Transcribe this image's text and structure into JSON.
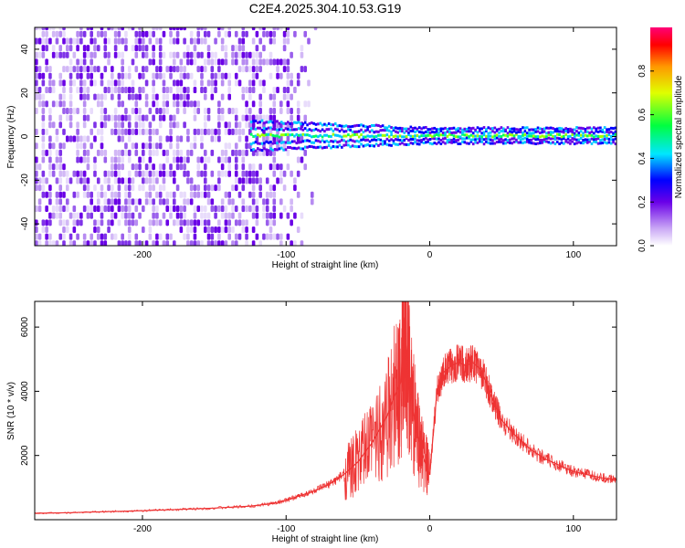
{
  "title": "C2E4.2025.304.10.53.G19",
  "chart_data": [
    {
      "type": "heatmap",
      "xlabel": "Height of straight line (km)",
      "ylabel": "Frequency (Hz)",
      "xlim": [
        -275,
        130
      ],
      "ylim": [
        -50,
        50
      ],
      "x_ticks": [
        -200,
        -100,
        0,
        100
      ],
      "y_ticks": [
        -40,
        -20,
        0,
        20,
        40
      ],
      "colorbar": {
        "label": "Normalized spectral amplitude",
        "range": [
          0.0,
          1.0
        ],
        "ticks": [
          0.0,
          0.2,
          0.4,
          0.6,
          0.8
        ]
      },
      "ridge_band": {
        "center_hz": 0,
        "half_width_hz": 4,
        "visible_from_km": -125,
        "visible_to_km": 130
      },
      "noise_region_km": [
        -275,
        -75
      ]
    },
    {
      "type": "line",
      "xlabel": "Height of straight line (km)",
      "ylabel": "SNR (10 * v/v)",
      "xlim": [
        -275,
        130
      ],
      "ylim": [
        0,
        6800
      ],
      "x_ticks": [
        -200,
        -100,
        0,
        100
      ],
      "y_ticks": [
        2000,
        4000,
        6000
      ],
      "color": "#ee3333",
      "series": [
        {
          "x": [
            -275,
            -250,
            -225,
            -200,
            -175,
            -150,
            -125,
            -110,
            -100,
            -90,
            -80,
            -70,
            -60,
            -50,
            -40,
            -30,
            -25,
            -20,
            -18,
            -15,
            -10,
            -5,
            0,
            5,
            10,
            15,
            20,
            25,
            30,
            35,
            40,
            45,
            50,
            60,
            70,
            80,
            90,
            100,
            110,
            120,
            130
          ],
          "y": [
            200,
            220,
            250,
            280,
            320,
            360,
            420,
            500,
            600,
            750,
            900,
            1100,
            1400,
            1800,
            2400,
            3200,
            3800,
            4300,
            6300,
            4500,
            3000,
            2000,
            1400,
            4000,
            4600,
            4800,
            4900,
            4800,
            4900,
            4700,
            4200,
            3600,
            3100,
            2600,
            2200,
            1900,
            1700,
            1500,
            1400,
            1300,
            1250
          ]
        }
      ]
    }
  ]
}
